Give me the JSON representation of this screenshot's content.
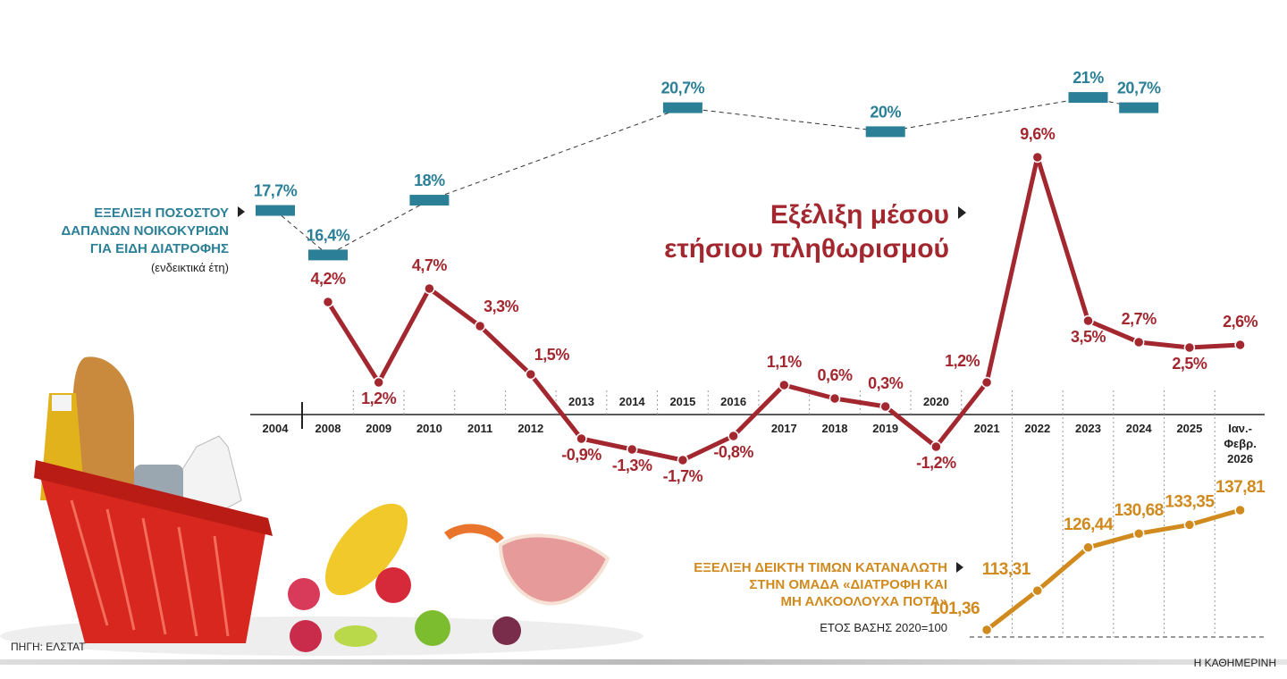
{
  "chart_data": {
    "type": "line",
    "x": [
      "2004",
      "2008",
      "2009",
      "2010",
      "2011",
      "2012",
      "2013",
      "2014",
      "2015",
      "2016",
      "2017",
      "2018",
      "2019",
      "2020",
      "2021",
      "2022",
      "2023",
      "2024",
      "2025",
      [
        "Ιαν.-",
        "Φεβρ.",
        "2026"
      ]
    ],
    "series": [
      {
        "name": [
          "ΕΞΕΛΙΞΗ ΠΟΣΟΣΤΟΥ",
          "ΔΑΠΑΝΩΝ ΝΟΙΚΟΚΥΡΙΩΝ",
          "ΓΙΑ ΕΙΔΗ ΔΙΑΤΡΟΦΗΣ"
        ],
        "note": "(ενδεικτικά έτη)",
        "color": "#2b7f97",
        "values": [
          17.7,
          16.4,
          null,
          18,
          null,
          null,
          null,
          null,
          20.7,
          null,
          null,
          null,
          20,
          null,
          null,
          null,
          21,
          20.7,
          null,
          null
        ],
        "value_labels": [
          "17,7%",
          "16,4%",
          null,
          "18%",
          null,
          null,
          null,
          null,
          "20,7%",
          null,
          null,
          null,
          "20%",
          null,
          null,
          null,
          "21%",
          "20,7%",
          null,
          null
        ]
      },
      {
        "name": [
          "Εξέλιξη μέσου",
          "ετήσιου πληθωρισμού"
        ],
        "color": "#a3272f",
        "values": [
          null,
          4.2,
          1.2,
          4.7,
          3.3,
          1.5,
          -0.9,
          -1.3,
          -1.7,
          -0.8,
          1.1,
          0.6,
          0.3,
          -1.2,
          1.2,
          9.6,
          3.5,
          2.7,
          2.5,
          2.6
        ],
        "value_labels": [
          null,
          "4,2%",
          "1,2%",
          "4,7%",
          "3,3%",
          "1,5%",
          "-0,9%",
          "-1,3%",
          "-1,7%",
          "-0,8%",
          "1,1%",
          "0,6%",
          "0,3%",
          "-1,2%",
          "1,2%",
          "9,6%",
          "3,5%",
          "2,7%",
          "2,5%",
          "2,6%"
        ]
      },
      {
        "name": [
          "ΕΞΕΛΙΞΗ ΔΕΙΚΤΗ ΤΙΜΩΝ ΚΑΤΑΝΑΛΩΤΗ",
          "ΣΤΗΝ ΟΜΑΔΑ «ΔΙΑΤΡΟΦΗ ΚΑΙ",
          "ΜΗ ΑΛΚΟΟΛΟΥΧΑ ΠΟΤΑ»"
        ],
        "note": "ΕΤΟΣ ΒΑΣΗΣ 2020=100",
        "color": "#d08a1e",
        "values": [
          null,
          null,
          null,
          null,
          null,
          null,
          null,
          null,
          null,
          null,
          null,
          null,
          null,
          null,
          101.36,
          113.31,
          126.44,
          130.68,
          133.35,
          137.81
        ],
        "value_labels": [
          null,
          null,
          null,
          null,
          null,
          null,
          null,
          null,
          null,
          null,
          null,
          null,
          null,
          null,
          "101,36",
          "113,31",
          "126,44",
          "130,68",
          "133,35",
          "137,81"
        ]
      }
    ],
    "source": "ΠΗΓΗ: ΕΛΣΤΑΤ",
    "credit": "Η ΚΑΘΗΜΕΡΙΝΗ"
  }
}
